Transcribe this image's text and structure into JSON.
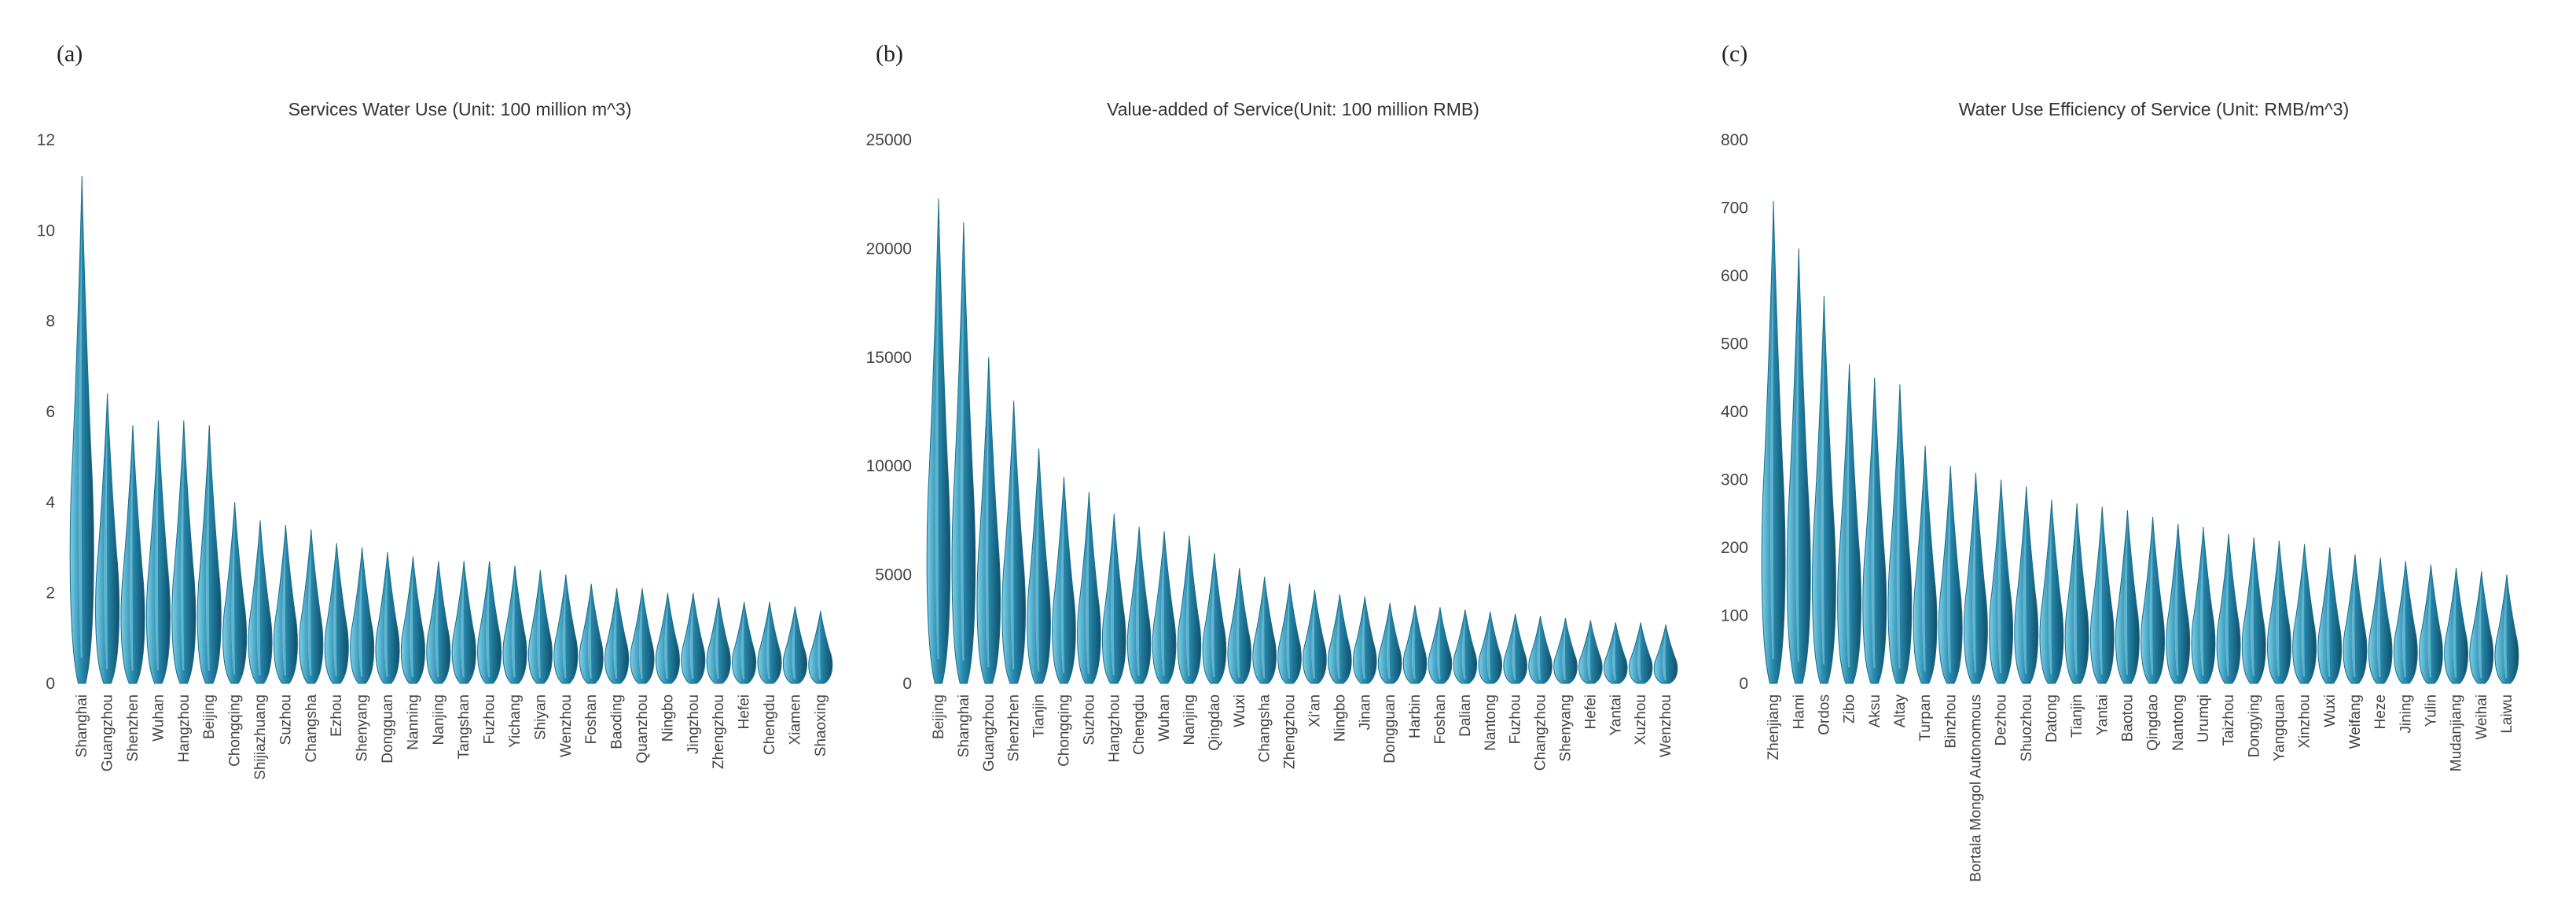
{
  "chart_data": [
    {
      "type": "area",
      "panel_label": "(a)",
      "title": "Services Water Use (Unit: 100 million m^3)",
      "ylim": [
        0,
        12
      ],
      "yticks": [
        0,
        2,
        4,
        6,
        8,
        10,
        12
      ],
      "categories": [
        "Shanghai",
        "Guangzhou",
        "Shenzhen",
        "Wuhan",
        "Hangzhou",
        "Beijing",
        "Chongqing",
        "Shijiazhuang",
        "Suzhou",
        "Changsha",
        "Ezhou",
        "Shenyang",
        "Dongguan",
        "Nanning",
        "Nanjing",
        "Tangshan",
        "Fuzhou",
        "Yichang",
        "Shiyan",
        "Wenzhou",
        "Foshan",
        "Baoding",
        "Quanzhou",
        "Ningbo",
        "Jingzhou",
        "Zhengzhou",
        "Hefei",
        "Chengdu",
        "Xiamen",
        "Shaoxing"
      ],
      "values": [
        11.2,
        6.4,
        5.7,
        5.8,
        5.8,
        5.7,
        4.0,
        3.6,
        3.5,
        3.4,
        3.1,
        3.0,
        2.9,
        2.8,
        2.7,
        2.7,
        2.7,
        2.6,
        2.5,
        2.4,
        2.2,
        2.1,
        2.1,
        2.0,
        2.0,
        1.9,
        1.8,
        1.8,
        1.7,
        1.6
      ],
      "color": "#2a8db1",
      "grid": false
    },
    {
      "type": "area",
      "panel_label": "(b)",
      "title": "Value-added of Service(Unit: 100 million RMB)",
      "ylim": [
        0,
        25000
      ],
      "yticks": [
        0,
        5000,
        10000,
        15000,
        20000,
        25000
      ],
      "categories": [
        "Beijing",
        "Shanghai",
        "Guangzhou",
        "Shenzhen",
        "Tianjin",
        "Chongqing",
        "Suzhou",
        "Hangzhou",
        "Chengdu",
        "Wuhan",
        "Nanjing",
        "Qingdao",
        "Wuxi",
        "Changsha",
        "Zhengzhou",
        "Xi'an",
        "Ningbo",
        "Jinan",
        "Dongguan",
        "Harbin",
        "Foshan",
        "Dalian",
        "Nantong",
        "Fuzhou",
        "Changzhou",
        "Shenyang",
        "Hefei",
        "Yantai",
        "Xuzhou",
        "Wenzhou"
      ],
      "values": [
        22300,
        21200,
        15000,
        13000,
        10800,
        9500,
        8800,
        7800,
        7200,
        7000,
        6800,
        6000,
        5300,
        4900,
        4600,
        4300,
        4100,
        4000,
        3700,
        3600,
        3500,
        3400,
        3300,
        3200,
        3100,
        3000,
        2900,
        2800,
        2800,
        2700
      ],
      "color": "#2a8db1",
      "grid": false
    },
    {
      "type": "area",
      "panel_label": "(c)",
      "title": "Water Use Efficiency of Service (Unit: RMB/m^3)",
      "ylim": [
        0,
        800
      ],
      "yticks": [
        0,
        100,
        200,
        300,
        400,
        500,
        600,
        700,
        800
      ],
      "categories": [
        "Zhenjiang",
        "Hami",
        "Ordos",
        "Zibo",
        "Aksu",
        "Altay",
        "Turpan",
        "Binzhou",
        "Bortala Mongol Autonomous",
        "Dezhou",
        "Shuozhou",
        "Datong",
        "Tianjin",
        "Yantai",
        "Baotou",
        "Qingdao",
        "Nantong",
        "Urumqi",
        "Taizhou",
        "Dongying",
        "Yangquan",
        "Xinzhou",
        "Wuxi",
        "Weifang",
        "Heze",
        "Jining",
        "Yulin",
        "Mudanjiang",
        "Weihai",
        "Laiwu"
      ],
      "values": [
        710,
        640,
        570,
        470,
        450,
        440,
        350,
        320,
        310,
        300,
        290,
        270,
        265,
        260,
        255,
        245,
        235,
        230,
        220,
        215,
        210,
        205,
        200,
        190,
        185,
        180,
        175,
        170,
        165,
        160
      ],
      "color": "#2a8db1",
      "grid": false
    }
  ]
}
